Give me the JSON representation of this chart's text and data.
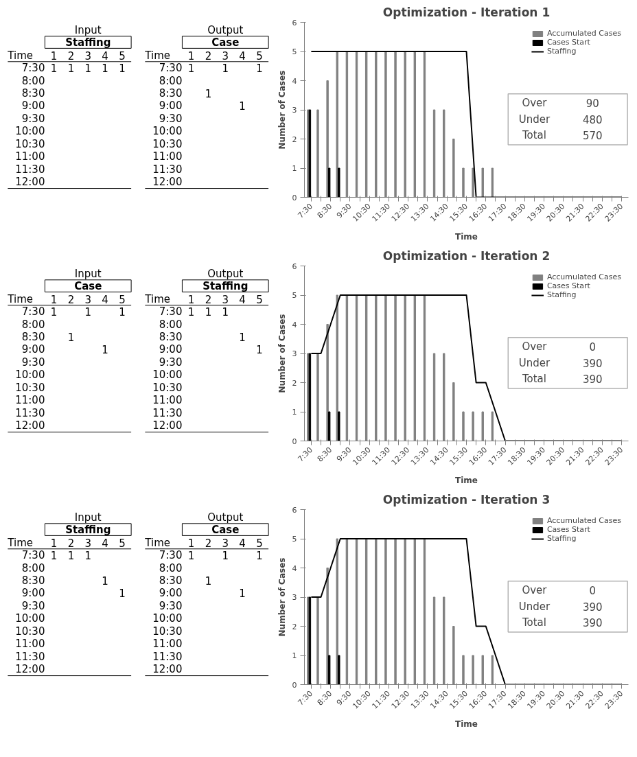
{
  "chart_data": [
    {
      "type": "heatmap",
      "subtitle": "Input",
      "title": "Staffing",
      "ylabel": "Time",
      "categories": [
        "1",
        "2",
        "3",
        "4",
        "5"
      ],
      "y_categories": [
        "7:30",
        "8:00",
        "8:30",
        "9:00",
        "9:30",
        "10:00",
        "10:30",
        "11:00",
        "11:30",
        "12:00"
      ],
      "cells": [
        [
          1,
          1,
          1,
          1,
          1
        ],
        [
          null,
          null,
          null,
          null,
          null
        ],
        [
          null,
          null,
          null,
          null,
          null
        ],
        [
          null,
          null,
          null,
          null,
          null
        ],
        [
          null,
          null,
          null,
          null,
          null
        ],
        [
          null,
          null,
          null,
          null,
          null
        ],
        [
          null,
          null,
          null,
          null,
          null
        ],
        [
          null,
          null,
          null,
          null,
          null
        ],
        [
          null,
          null,
          null,
          null,
          null
        ],
        [
          null,
          null,
          null,
          null,
          null
        ]
      ],
      "data_labels": true
    },
    {
      "type": "heatmap",
      "subtitle": "Output",
      "title": "Case",
      "ylabel": "Time",
      "categories": [
        "1",
        "2",
        "3",
        "4",
        "5"
      ],
      "y_categories": [
        "7:30",
        "8:00",
        "8:30",
        "9:00",
        "9:30",
        "10:00",
        "10:30",
        "11:00",
        "11:30",
        "12:00"
      ],
      "cells": [
        [
          1,
          null,
          1,
          null,
          1
        ],
        [
          null,
          null,
          null,
          null,
          null
        ],
        [
          null,
          1,
          null,
          null,
          null
        ],
        [
          null,
          null,
          null,
          1,
          null
        ],
        [
          null,
          null,
          null,
          null,
          null
        ],
        [
          null,
          null,
          null,
          null,
          null
        ],
        [
          null,
          null,
          null,
          null,
          null
        ],
        [
          null,
          null,
          null,
          null,
          null
        ],
        [
          null,
          null,
          null,
          null,
          null
        ],
        [
          null,
          null,
          null,
          null,
          null
        ]
      ],
      "data_labels": true
    },
    {
      "type": "bar",
      "title": "Optimization - Iteration 1",
      "xlabel": "Time",
      "ylabel": "Number of Cases",
      "categories": [
        "7:30",
        null,
        "8:30",
        null,
        "9:30",
        null,
        "10:30",
        null,
        "11:30",
        null,
        "12:30",
        null,
        "13:30",
        null,
        "14:30",
        null,
        "15:30",
        null,
        "16:30",
        null,
        "17:30",
        null,
        "18:30",
        null,
        "19:30",
        null,
        "20:30",
        null,
        "21:30",
        null,
        "22:30",
        null,
        "23:30"
      ],
      "ylim": [
        0,
        6
      ],
      "yticks": [
        0,
        1,
        2,
        3,
        4,
        5,
        6
      ],
      "legend": "top right",
      "annotations": [
        "Over",
        "90",
        "Under",
        "480",
        "Total",
        "570"
      ],
      "series": [
        {
          "name": "Accumulated Cases",
          "type": "bar",
          "color": "#808080",
          "values": [
            3,
            3,
            4,
            5,
            5,
            5,
            5,
            5,
            5,
            5,
            5,
            5,
            5,
            3,
            3,
            2,
            1,
            1,
            1,
            1,
            0,
            0,
            0,
            0,
            0,
            0,
            0,
            0,
            0,
            0,
            0,
            0,
            0
          ]
        },
        {
          "name": "Cases Start",
          "type": "bar",
          "color": "#000000",
          "values": [
            3,
            0,
            1,
            1,
            0,
            0,
            0,
            0,
            0,
            0,
            0,
            0,
            0,
            0,
            0,
            0,
            0,
            0,
            0,
            0,
            0,
            0,
            0,
            0,
            0,
            0,
            0,
            0,
            0,
            0,
            0,
            0,
            0
          ]
        },
        {
          "name": "Staffing",
          "type": "line",
          "color": "#000000",
          "values": [
            5,
            5,
            5,
            5,
            5,
            5,
            5,
            5,
            5,
            5,
            5,
            5,
            5,
            5,
            5,
            5,
            5,
            0,
            0,
            0,
            0,
            0,
            0,
            0,
            0,
            0,
            0,
            0,
            0,
            0,
            0,
            0,
            0
          ]
        }
      ]
    },
    {
      "type": "heatmap",
      "subtitle": "Input",
      "title": "Case",
      "ylabel": "Time",
      "categories": [
        "1",
        "2",
        "3",
        "4",
        "5"
      ],
      "y_categories": [
        "7:30",
        "8:00",
        "8:30",
        "9:00",
        "9:30",
        "10:00",
        "10:30",
        "11:00",
        "11:30",
        "12:00"
      ],
      "cells": [
        [
          1,
          null,
          1,
          null,
          1
        ],
        [
          null,
          null,
          null,
          null,
          null
        ],
        [
          null,
          1,
          null,
          null,
          null
        ],
        [
          null,
          null,
          null,
          1,
          null
        ],
        [
          null,
          null,
          null,
          null,
          null
        ],
        [
          null,
          null,
          null,
          null,
          null
        ],
        [
          null,
          null,
          null,
          null,
          null
        ],
        [
          null,
          null,
          null,
          null,
          null
        ],
        [
          null,
          null,
          null,
          null,
          null
        ],
        [
          null,
          null,
          null,
          null,
          null
        ]
      ],
      "data_labels": true
    },
    {
      "type": "heatmap",
      "subtitle": "Output",
      "title": "Staffing",
      "ylabel": "Time",
      "categories": [
        "1",
        "2",
        "3",
        "4",
        "5"
      ],
      "y_categories": [
        "7:30",
        "8:00",
        "8:30",
        "9:00",
        "9:30",
        "10:00",
        "10:30",
        "11:00",
        "11:30",
        "12:00"
      ],
      "cells": [
        [
          1,
          1,
          1,
          null,
          null
        ],
        [
          null,
          null,
          null,
          null,
          null
        ],
        [
          null,
          null,
          null,
          1,
          null
        ],
        [
          null,
          null,
          null,
          null,
          1
        ],
        [
          null,
          null,
          null,
          null,
          null
        ],
        [
          null,
          null,
          null,
          null,
          null
        ],
        [
          null,
          null,
          null,
          null,
          null
        ],
        [
          null,
          null,
          null,
          null,
          null
        ],
        [
          null,
          null,
          null,
          null,
          null
        ],
        [
          null,
          null,
          null,
          null,
          null
        ]
      ],
      "data_labels": true
    },
    {
      "type": "bar",
      "title": "Optimization - Iteration 2",
      "xlabel": "Time",
      "ylabel": "Number of Cases",
      "categories": [
        "7:30",
        null,
        "8:30",
        null,
        "9:30",
        null,
        "10:30",
        null,
        "11:30",
        null,
        "12:30",
        null,
        "13:30",
        null,
        "14:30",
        null,
        "15:30",
        null,
        "16:30",
        null,
        "17:30",
        null,
        "18:30",
        null,
        "19:30",
        null,
        "20:30",
        null,
        "21:30",
        null,
        "22:30",
        null,
        "23:30"
      ],
      "ylim": [
        0,
        6
      ],
      "yticks": [
        0,
        1,
        2,
        3,
        4,
        5,
        6
      ],
      "legend": "top right",
      "annotations": [
        "Over",
        "0",
        "Under",
        "390",
        "Total",
        "390"
      ],
      "series": [
        {
          "name": "Accumulated Cases",
          "type": "bar",
          "color": "#808080",
          "values": [
            3,
            3,
            4,
            5,
            5,
            5,
            5,
            5,
            5,
            5,
            5,
            5,
            5,
            3,
            3,
            2,
            1,
            1,
            1,
            1,
            0,
            0,
            0,
            0,
            0,
            0,
            0,
            0,
            0,
            0,
            0,
            0,
            0
          ]
        },
        {
          "name": "Cases Start",
          "type": "bar",
          "color": "#000000",
          "values": [
            3,
            0,
            1,
            1,
            0,
            0,
            0,
            0,
            0,
            0,
            0,
            0,
            0,
            0,
            0,
            0,
            0,
            0,
            0,
            0,
            0,
            0,
            0,
            0,
            0,
            0,
            0,
            0,
            0,
            0,
            0,
            0,
            0
          ]
        },
        {
          "name": "Staffing",
          "type": "line",
          "color": "#000000",
          "values": [
            3,
            3,
            4,
            5,
            5,
            5,
            5,
            5,
            5,
            5,
            5,
            5,
            5,
            5,
            5,
            5,
            5,
            2,
            2,
            1,
            0,
            0,
            0,
            0,
            0,
            0,
            0,
            0,
            0,
            0,
            0,
            0,
            0
          ]
        }
      ]
    },
    {
      "type": "heatmap",
      "subtitle": "Input",
      "title": "Staffing",
      "ylabel": "Time",
      "categories": [
        "1",
        "2",
        "3",
        "4",
        "5"
      ],
      "y_categories": [
        "7:30",
        "8:00",
        "8:30",
        "9:00",
        "9:30",
        "10:00",
        "10:30",
        "11:00",
        "11:30",
        "12:00"
      ],
      "cells": [
        [
          1,
          1,
          1,
          null,
          null
        ],
        [
          null,
          null,
          null,
          null,
          null
        ],
        [
          null,
          null,
          null,
          1,
          null
        ],
        [
          null,
          null,
          null,
          null,
          1
        ],
        [
          null,
          null,
          null,
          null,
          null
        ],
        [
          null,
          null,
          null,
          null,
          null
        ],
        [
          null,
          null,
          null,
          null,
          null
        ],
        [
          null,
          null,
          null,
          null,
          null
        ],
        [
          null,
          null,
          null,
          null,
          null
        ],
        [
          null,
          null,
          null,
          null,
          null
        ]
      ],
      "data_labels": true
    },
    {
      "type": "heatmap",
      "subtitle": "Output",
      "title": "Case",
      "ylabel": "Time",
      "categories": [
        "1",
        "2",
        "3",
        "4",
        "5"
      ],
      "y_categories": [
        "7:30",
        "8:00",
        "8:30",
        "9:00",
        "9:30",
        "10:00",
        "10:30",
        "11:00",
        "11:30",
        "12:00"
      ],
      "cells": [
        [
          1,
          null,
          1,
          null,
          1
        ],
        [
          null,
          null,
          null,
          null,
          null
        ],
        [
          null,
          1,
          null,
          null,
          null
        ],
        [
          null,
          null,
          null,
          1,
          null
        ],
        [
          null,
          null,
          null,
          null,
          null
        ],
        [
          null,
          null,
          null,
          null,
          null
        ],
        [
          null,
          null,
          null,
          null,
          null
        ],
        [
          null,
          null,
          null,
          null,
          null
        ],
        [
          null,
          null,
          null,
          null,
          null
        ],
        [
          null,
          null,
          null,
          null,
          null
        ]
      ],
      "data_labels": true
    },
    {
      "type": "bar",
      "title": "Optimization - Iteration 3",
      "xlabel": "Time",
      "ylabel": "Number of Cases",
      "categories": [
        "7:30",
        null,
        "8:30",
        null,
        "9:30",
        null,
        "10:30",
        null,
        "11:30",
        null,
        "12:30",
        null,
        "13:30",
        null,
        "14:30",
        null,
        "15:30",
        null,
        "16:30",
        null,
        "17:30",
        null,
        "18:30",
        null,
        "19:30",
        null,
        "20:30",
        null,
        "21:30",
        null,
        "22:30",
        null,
        "23:30"
      ],
      "ylim": [
        0,
        6
      ],
      "yticks": [
        0,
        1,
        2,
        3,
        4,
        5,
        6
      ],
      "legend": "top right",
      "annotations": [
        "Over",
        "0",
        "Under",
        "390",
        "Total",
        "390"
      ],
      "series": [
        {
          "name": "Accumulated Cases",
          "type": "bar",
          "color": "#808080",
          "values": [
            3,
            3,
            4,
            5,
            5,
            5,
            5,
            5,
            5,
            5,
            5,
            5,
            5,
            3,
            3,
            2,
            1,
            1,
            1,
            1,
            0,
            0,
            0,
            0,
            0,
            0,
            0,
            0,
            0,
            0,
            0,
            0,
            0
          ]
        },
        {
          "name": "Cases Start",
          "type": "bar",
          "color": "#000000",
          "values": [
            3,
            0,
            1,
            1,
            0,
            0,
            0,
            0,
            0,
            0,
            0,
            0,
            0,
            0,
            0,
            0,
            0,
            0,
            0,
            0,
            0,
            0,
            0,
            0,
            0,
            0,
            0,
            0,
            0,
            0,
            0,
            0,
            0
          ]
        },
        {
          "name": "Staffing",
          "type": "line",
          "color": "#000000",
          "values": [
            3,
            3,
            4,
            5,
            5,
            5,
            5,
            5,
            5,
            5,
            5,
            5,
            5,
            5,
            5,
            5,
            5,
            2,
            2,
            1,
            0,
            0,
            0,
            0,
            0,
            0,
            0,
            0,
            0,
            0,
            0,
            0,
            0
          ]
        }
      ]
    }
  ]
}
